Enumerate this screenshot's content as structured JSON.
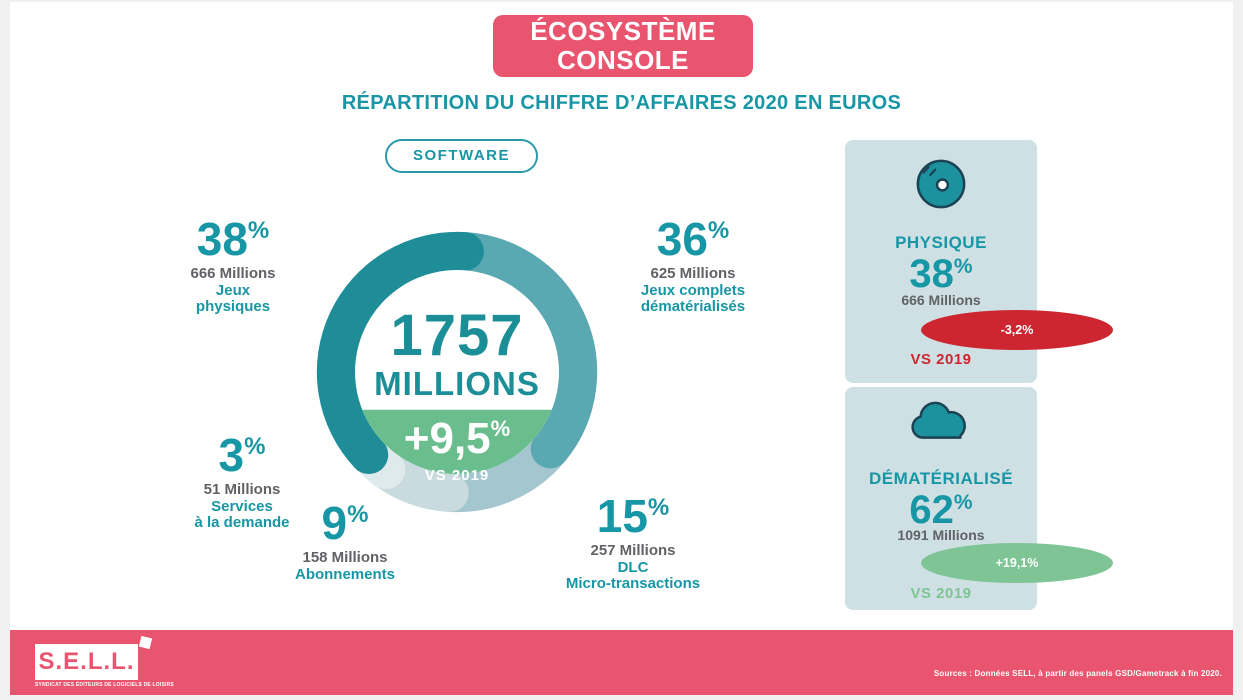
{
  "symbols": {
    "percent": "%"
  },
  "colors": {
    "accent_pink": "#e9556e",
    "teal_text": "#1796a5",
    "dark_teal": "#1f8d97",
    "medium_teal": "#5aa8b2",
    "gray_blue": "#a3c6cf",
    "light_gray": "#c9dbdf",
    "lightest_gray": "#dfeaec",
    "center_green": "#6abe8e",
    "panel_bg": "#cfe0e4",
    "negative_red": "#cd2630",
    "positive_green": "#7ec494",
    "gray_text": "#606266",
    "white": "#ffffff"
  },
  "header": {
    "badge_line1": "ÉCOSYSTÈME",
    "badge_line2": "CONSOLE",
    "title": "RÉPARTITION DU CHIFFRE D’AFFAIRES 2020 EN EUROS",
    "tag": "SOFTWARE"
  },
  "chart_data": {
    "type": "pie",
    "variant": "donut",
    "title": "Répartition du chiffre d'affaires 2020 en euros — Software (écosystème console)",
    "unit": "Millions d'euros",
    "center": {
      "value": "1757",
      "unit": "MILLIONS",
      "growth": "+9,5",
      "vs": "VS 2019"
    },
    "segments": [
      {
        "name": "Jeux complets dématérialisés",
        "value": 36,
        "pct": "36",
        "amount": "625 Millions",
        "name_lines": [
          "Jeux complets",
          "dématérialisés"
        ],
        "color": "#5aa8b2"
      },
      {
        "name": "DLC Micro-transactions",
        "value": 15,
        "pct": "15",
        "amount": "257 Millions",
        "name_lines": [
          "DLC",
          "Micro-transactions"
        ],
        "color": "#a3c6cf"
      },
      {
        "name": "Abonnements",
        "value": 9,
        "pct": "9",
        "amount": "158 Millions",
        "name_lines": [
          "Abonnements"
        ],
        "color": "#c9dbdf"
      },
      {
        "name": "Services à la demande",
        "value": 3,
        "pct": "3",
        "amount": "51 Millions",
        "name_lines": [
          "Services",
          "à la demande"
        ],
        "color": "#dfeaec"
      },
      {
        "name": "Jeux physiques",
        "value": 38,
        "pct": "38",
        "amount": "666 Millions",
        "name_lines": [
          "Jeux",
          "physiques"
        ],
        "color": "#1f8d97"
      }
    ]
  },
  "panel": {
    "sections": [
      {
        "icon": "disc-icon",
        "title": "PHYSIQUE",
        "pct": "38",
        "amount": "666 Millions",
        "badge": "-3,2%",
        "vs": "VS 2019",
        "trend": "down"
      },
      {
        "icon": "cloud-icon",
        "title": "DÉMATÉRIALISÉ",
        "pct": "62",
        "amount": "1091 Millions",
        "badge": "+19,1%",
        "vs": "VS 2019",
        "trend": "up"
      }
    ]
  },
  "footer": {
    "logo": "S.E.L.L.",
    "logo_sub": "SYNDICAT DES ÉDITEURS DE LOGICIELS DE LOISIRS",
    "sources": "Sources : Données SELL, à partir des panels GSD/Gametrack à fin 2020."
  }
}
